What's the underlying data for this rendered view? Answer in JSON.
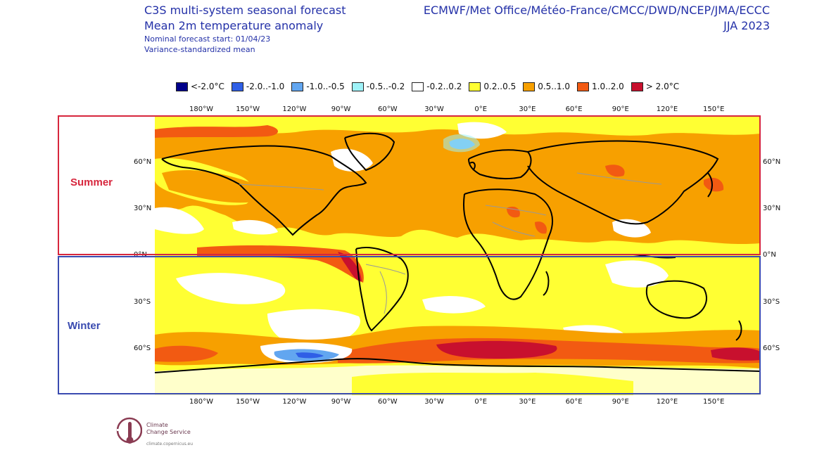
{
  "header": {
    "title_line1": "C3S multi-system seasonal forecast",
    "title_line2": "Mean 2m temperature anomaly",
    "sub_line1": "Nominal forecast start: 01/04/23",
    "sub_line2": "Variance-standardized mean",
    "agencies": "ECMWF/Met Office/Météo-France/CMCC/DWD/NCEP/JMA/ECCC",
    "season": "JJA 2023"
  },
  "legend": [
    {
      "label": "<-2.0°C",
      "color": "#00008b"
    },
    {
      "label": "-2.0..-1.0",
      "color": "#2f5fe6"
    },
    {
      "label": "-1.0..-0.5",
      "color": "#62a6f0"
    },
    {
      "label": "-0.5..-0.2",
      "color": "#9ef2f8"
    },
    {
      "label": "-0.2..0.2",
      "color": "#ffffff"
    },
    {
      "label": "0.2..0.5",
      "color": "#ffff33"
    },
    {
      "label": "0.5..1.0",
      "color": "#f7a000"
    },
    {
      "label": "1.0..2.0",
      "color": "#f25a12"
    },
    {
      "label": "> 2.0°C",
      "color": "#c8102e"
    }
  ],
  "lon_labels": [
    "180°W",
    "150°W",
    "120°W",
    "90°W",
    "60°W",
    "30°W",
    "0°E",
    "30°E",
    "60°E",
    "90°E",
    "120°E",
    "150°E"
  ],
  "lat_labels": [
    "60°N",
    "30°N",
    "0°N",
    "30°S",
    "60°S"
  ],
  "annotations": {
    "summer": "Summer",
    "winter": "Winter"
  },
  "logo": {
    "line1": "Climate",
    "line2": "Change Service",
    "url": "climate.copernicus.eu"
  },
  "colors": {
    "title_blue": "#2431a8",
    "summer_box": "#d7263d",
    "winter_box": "#3a4bb0"
  }
}
